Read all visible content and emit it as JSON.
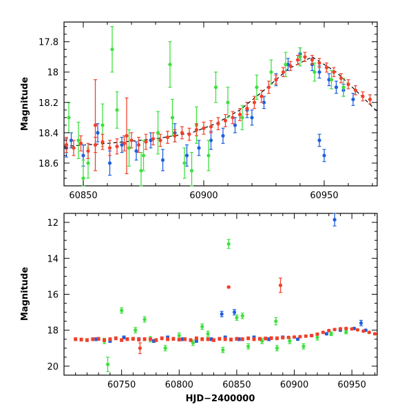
{
  "chart_data": [
    {
      "type": "scatter",
      "panel": "top",
      "xlabel": "",
      "ylabel": "Magnitude",
      "xlim": [
        60842,
        60972
      ],
      "ylim": [
        18.75,
        17.67
      ],
      "y_inverted": true,
      "x_ticks": [
        60850,
        60900,
        60950
      ],
      "x_tick_labels": [
        "60850",
        "60900",
        "60950"
      ],
      "y_ticks": [
        17.8,
        18.0,
        18.2,
        18.4,
        18.6
      ],
      "y_tick_labels": [
        "17.8",
        "18",
        "18.2",
        "18.4",
        "18.6"
      ],
      "model_curve": {
        "name": "model fit",
        "style": "dashed",
        "color": "#000000",
        "x": [
          60842,
          60860,
          60880,
          60895,
          60905,
          60915,
          60925,
          60935,
          60945,
          60955,
          60965,
          60972
        ],
        "y": [
          18.49,
          18.47,
          18.44,
          18.4,
          18.34,
          18.25,
          18.12,
          17.98,
          17.9,
          18.0,
          18.15,
          18.26
        ]
      },
      "series": [
        {
          "name": "blue",
          "color": "#1f5fe0",
          "x": [
            60843,
            60845,
            60850,
            60856,
            60861,
            60866,
            60872,
            60878,
            60883,
            60888,
            60893,
            60898,
            60903,
            60908,
            60913,
            60918,
            60920,
            60925,
            60930,
            60935,
            60940,
            60945,
            60948,
            60952,
            60955,
            60958,
            60962,
            60948,
            60950
          ],
          "y": [
            18.5,
            18.45,
            18.55,
            18.4,
            18.6,
            18.48,
            18.52,
            18.45,
            18.58,
            18.4,
            18.55,
            18.5,
            18.45,
            18.42,
            18.35,
            18.25,
            18.3,
            18.2,
            18.05,
            17.95,
            17.88,
            17.95,
            18.0,
            18.05,
            18.1,
            18.12,
            18.18,
            18.45,
            18.55
          ],
          "yerr": [
            0.06,
            0.05,
            0.07,
            0.06,
            0.08,
            0.05,
            0.06,
            0.05,
            0.07,
            0.06,
            0.07,
            0.05,
            0.06,
            0.05,
            0.05,
            0.05,
            0.05,
            0.04,
            0.04,
            0.04,
            0.04,
            0.04,
            0.04,
            0.04,
            0.04,
            0.04,
            0.04,
            0.04,
            0.04
          ]
        },
        {
          "name": "green",
          "color": "#3ee03e",
          "x": [
            60844,
            60848,
            60852,
            60858,
            60864,
            60869,
            60875,
            60881,
            60887,
            60892,
            60897,
            60902,
            60910,
            60916,
            60922,
            60928,
            60934,
            60940,
            60946,
            60953,
            60958,
            60850,
            60862,
            60874,
            60886,
            60895,
            60905
          ],
          "y": [
            18.3,
            18.45,
            18.6,
            18.35,
            18.25,
            18.5,
            18.55,
            18.4,
            18.3,
            18.6,
            18.35,
            18.55,
            18.2,
            18.3,
            18.1,
            18.0,
            17.95,
            17.9,
            18.0,
            18.05,
            18.1,
            18.7,
            17.85,
            18.65,
            17.95,
            18.65,
            18.1
          ],
          "yerr": [
            0.1,
            0.12,
            0.1,
            0.14,
            0.12,
            0.12,
            0.1,
            0.14,
            0.12,
            0.1,
            0.12,
            0.1,
            0.1,
            0.08,
            0.08,
            0.08,
            0.08,
            0.06,
            0.06,
            0.06,
            0.06,
            0.12,
            0.15,
            0.12,
            0.15,
            0.12,
            0.1
          ]
        },
        {
          "name": "red",
          "color": "#f0402a",
          "x": [
            60843,
            60846,
            60849,
            60852,
            60855,
            60858,
            60861,
            60864,
            60867,
            60870,
            60873,
            60876,
            60879,
            60882,
            60885,
            60888,
            60891,
            60894,
            60897,
            60900,
            60903,
            60906,
            60909,
            60912,
            60915,
            60918,
            60921,
            60924,
            60927,
            60930,
            60933,
            60936,
            60939,
            60942,
            60945,
            60948,
            60951,
            60954,
            60957,
            60960,
            60963,
            60966,
            60969,
            60855,
            60868
          ],
          "y": [
            18.48,
            18.5,
            18.47,
            18.52,
            18.48,
            18.46,
            18.5,
            18.49,
            18.47,
            18.45,
            18.48,
            18.46,
            18.44,
            18.45,
            18.43,
            18.42,
            18.4,
            18.41,
            18.38,
            18.37,
            18.36,
            18.34,
            18.32,
            18.3,
            18.28,
            18.24,
            18.2,
            18.16,
            18.1,
            18.05,
            18.0,
            17.96,
            17.92,
            17.9,
            17.92,
            17.94,
            17.97,
            18.0,
            18.04,
            18.08,
            18.12,
            18.16,
            18.18,
            18.35,
            18.42
          ],
          "yerr": [
            0.05,
            0.05,
            0.05,
            0.05,
            0.05,
            0.05,
            0.05,
            0.05,
            0.05,
            0.05,
            0.05,
            0.05,
            0.04,
            0.04,
            0.04,
            0.04,
            0.04,
            0.04,
            0.04,
            0.04,
            0.04,
            0.04,
            0.04,
            0.04,
            0.04,
            0.04,
            0.04,
            0.04,
            0.04,
            0.03,
            0.03,
            0.03,
            0.03,
            0.03,
            0.03,
            0.03,
            0.03,
            0.03,
            0.03,
            0.03,
            0.03,
            0.03,
            0.03,
            0.3,
            0.25
          ]
        }
      ]
    },
    {
      "type": "scatter",
      "panel": "bottom",
      "xlabel": "HJD−2400000",
      "ylabel": "Magnitude",
      "xlim": [
        60700,
        60972
      ],
      "ylim": [
        20.5,
        11.5
      ],
      "y_inverted": true,
      "x_ticks": [
        60750,
        60800,
        60850,
        60900,
        60950
      ],
      "x_tick_labels": [
        "60750",
        "60800",
        "60850",
        "60900",
        "60950"
      ],
      "y_ticks": [
        12,
        14,
        16,
        18,
        20
      ],
      "y_tick_labels": [
        "12",
        "14",
        "16",
        "18",
        "20"
      ],
      "series": [
        {
          "name": "blue",
          "color": "#1f5fe0",
          "x": [
            60728,
            60740,
            60752,
            60765,
            60778,
            60790,
            60803,
            60815,
            60828,
            60840,
            60852,
            60865,
            60878,
            60890,
            60903,
            60915,
            60928,
            60940,
            60952,
            60962,
            60837,
            60848,
            60935,
            60958
          ],
          "y": [
            18.5,
            18.6,
            18.4,
            18.5,
            18.6,
            18.4,
            18.5,
            18.6,
            18.5,
            18.4,
            18.5,
            18.4,
            18.5,
            18.4,
            18.5,
            18.3,
            18.2,
            18.0,
            17.9,
            18.0,
            17.1,
            17.0,
            11.85,
            17.6
          ],
          "yerr": [
            0.08,
            0.08,
            0.08,
            0.08,
            0.08,
            0.08,
            0.08,
            0.08,
            0.08,
            0.08,
            0.08,
            0.08,
            0.08,
            0.08,
            0.06,
            0.06,
            0.06,
            0.05,
            0.05,
            0.05,
            0.15,
            0.15,
            0.35,
            0.15
          ]
        },
        {
          "name": "green",
          "color": "#3ee03e",
          "x": [
            60735,
            60738,
            60750,
            60762,
            60775,
            60788,
            60800,
            60812,
            60825,
            60838,
            60843,
            60850,
            60860,
            60872,
            60884,
            60896,
            60908,
            60920,
            60932,
            60945,
            60770,
            60820,
            60855,
            60885
          ],
          "y": [
            18.6,
            19.9,
            16.9,
            18.0,
            18.5,
            19.0,
            18.3,
            18.7,
            18.2,
            19.1,
            13.2,
            17.3,
            18.9,
            18.6,
            17.5,
            18.6,
            18.9,
            18.4,
            18.2,
            18.1,
            17.4,
            17.8,
            17.2,
            19.0
          ],
          "yerr": [
            0.15,
            0.4,
            0.15,
            0.15,
            0.15,
            0.15,
            0.15,
            0.15,
            0.15,
            0.15,
            0.25,
            0.15,
            0.15,
            0.15,
            0.2,
            0.15,
            0.15,
            0.15,
            0.1,
            0.1,
            0.15,
            0.15,
            0.15,
            0.15
          ]
        },
        {
          "name": "red",
          "color": "#f0402a",
          "x": [
            60710,
            60715,
            60720,
            60725,
            60730,
            60735,
            60740,
            60745,
            60750,
            60755,
            60760,
            60765,
            60770,
            60775,
            60780,
            60785,
            60790,
            60795,
            60800,
            60805,
            60810,
            60815,
            60820,
            60825,
            60830,
            60835,
            60840,
            60845,
            60850,
            60855,
            60860,
            60865,
            60870,
            60875,
            60880,
            60885,
            60890,
            60895,
            60900,
            60905,
            60910,
            60915,
            60920,
            60925,
            60930,
            60935,
            60940,
            60945,
            60950,
            60955,
            60960,
            60965,
            60970,
            60843,
            60888,
            60766
          ],
          "y": [
            18.5,
            18.52,
            18.55,
            18.5,
            18.48,
            18.55,
            18.5,
            18.45,
            18.55,
            18.5,
            18.48,
            18.52,
            18.5,
            18.5,
            18.55,
            18.45,
            18.5,
            18.48,
            18.52,
            18.5,
            18.55,
            18.45,
            18.5,
            18.5,
            18.55,
            18.48,
            18.5,
            18.52,
            18.48,
            18.5,
            18.45,
            18.5,
            18.48,
            18.46,
            18.44,
            18.45,
            18.42,
            18.4,
            18.38,
            18.36,
            18.33,
            18.3,
            18.22,
            18.12,
            18.02,
            17.96,
            17.92,
            17.9,
            17.93,
            17.98,
            18.05,
            18.12,
            18.2,
            15.6,
            15.5,
            19.0
          ],
          "yerr": [
            0.08,
            0.08,
            0.08,
            0.08,
            0.08,
            0.08,
            0.08,
            0.08,
            0.08,
            0.08,
            0.08,
            0.08,
            0.08,
            0.08,
            0.08,
            0.08,
            0.08,
            0.08,
            0.08,
            0.08,
            0.08,
            0.08,
            0.08,
            0.08,
            0.08,
            0.08,
            0.08,
            0.08,
            0.08,
            0.08,
            0.08,
            0.08,
            0.08,
            0.08,
            0.08,
            0.08,
            0.06,
            0.06,
            0.06,
            0.06,
            0.06,
            0.06,
            0.06,
            0.05,
            0.05,
            0.05,
            0.05,
            0.05,
            0.05,
            0.05,
            0.05,
            0.05,
            0.05,
            0.05,
            0.4,
            0.3
          ]
        }
      ]
    }
  ]
}
